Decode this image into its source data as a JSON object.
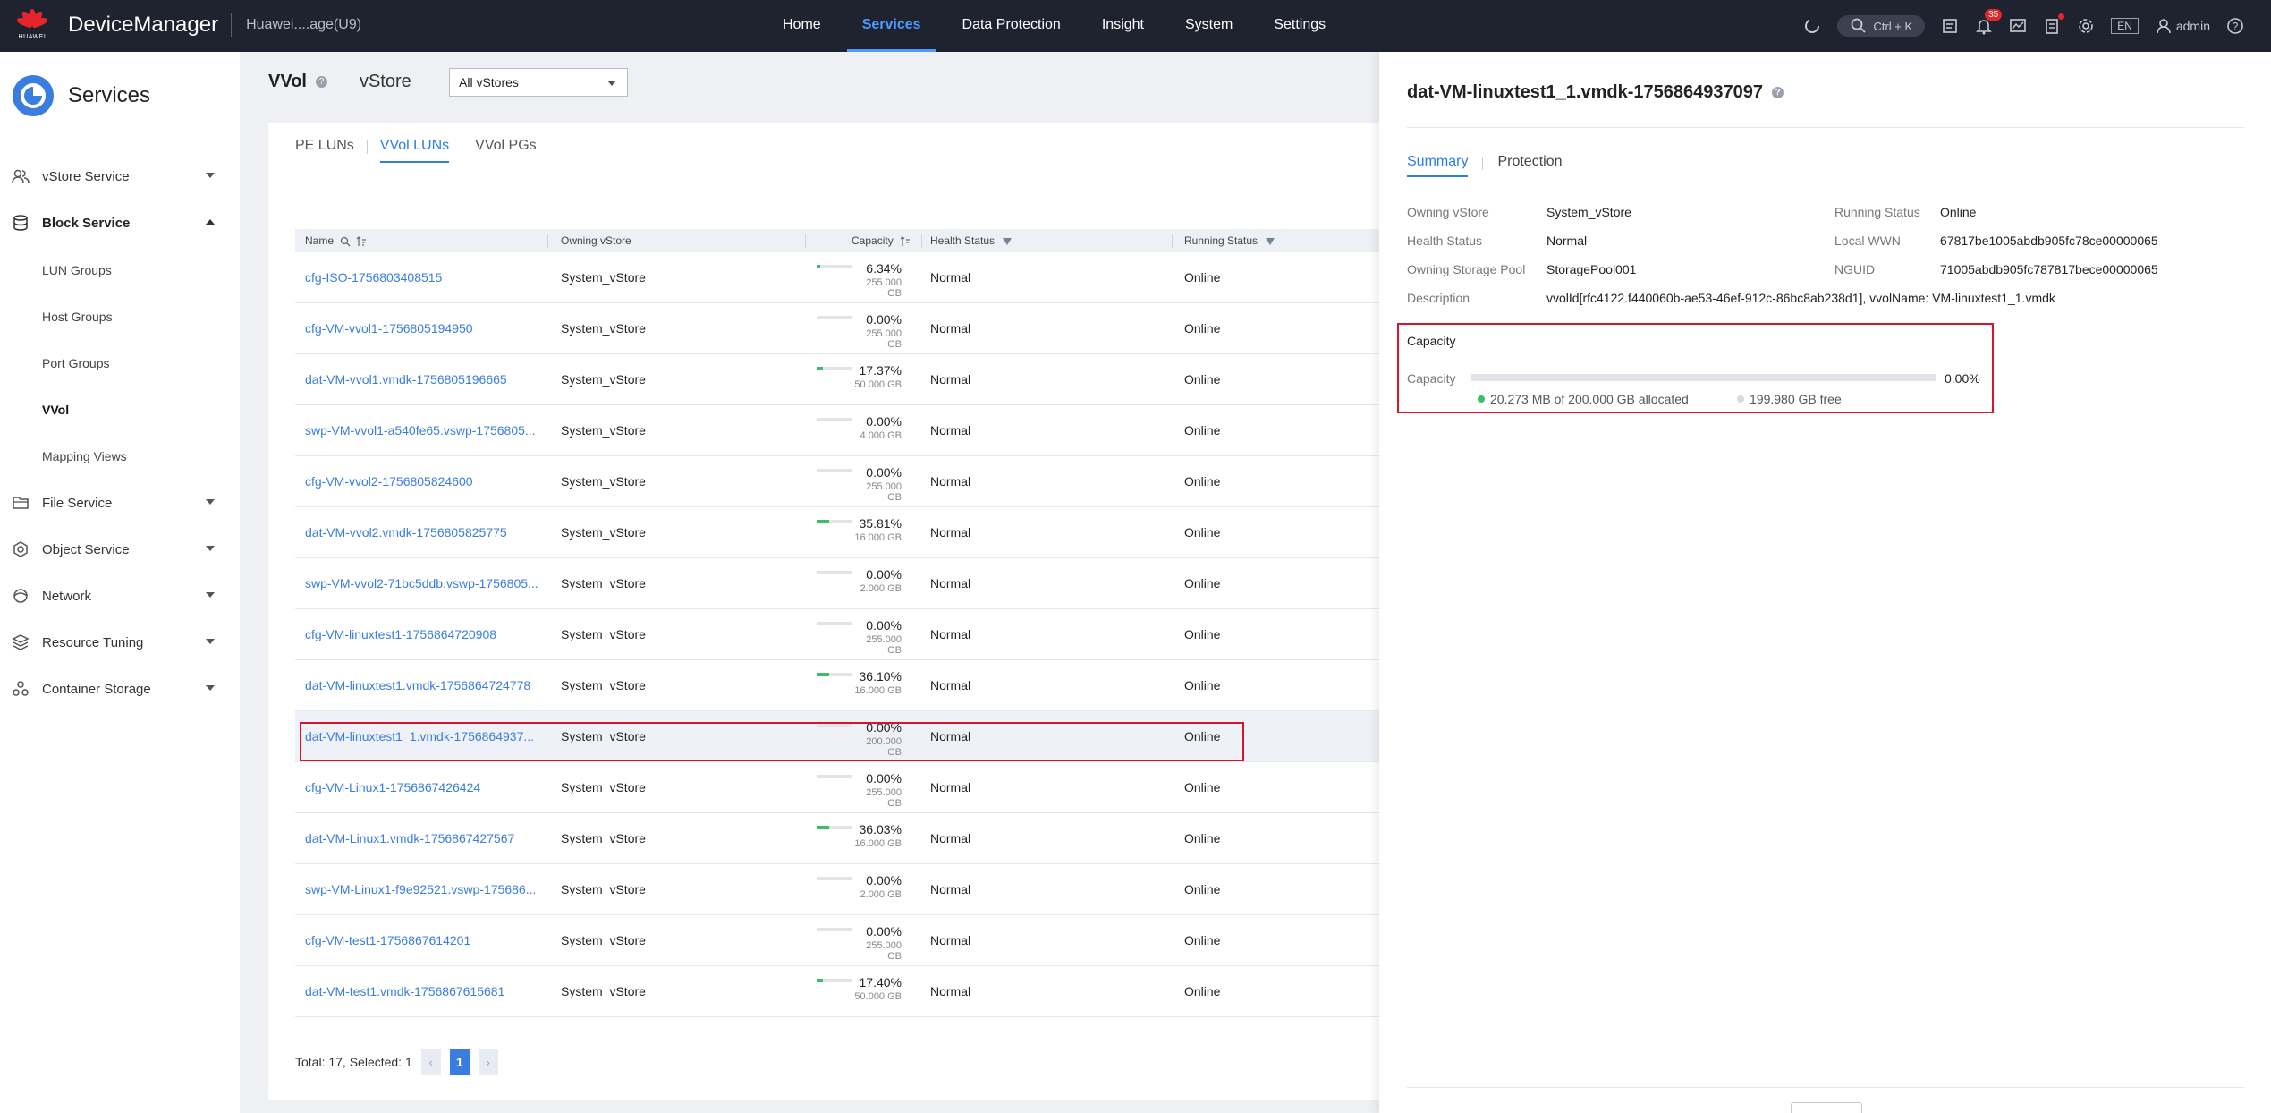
{
  "topnav": {
    "brand_logo_text": "HUAWEI",
    "app_title": "DeviceManager",
    "device_name": "Huawei....age(U9)",
    "tabs": [
      {
        "label": "Home"
      },
      {
        "label": "Services",
        "active": true
      },
      {
        "label": "Data Protection"
      },
      {
        "label": "Insight"
      },
      {
        "label": "System"
      },
      {
        "label": "Settings"
      }
    ],
    "search_shortcut": "Ctrl + K",
    "alarm_count": "35",
    "language": "EN",
    "user": "admin",
    "icons": [
      "loading-icon",
      "search-icon",
      "task-icon",
      "bell-icon",
      "monitor-icon",
      "clipboard-icon",
      "gear-icon",
      "user-icon",
      "help-icon"
    ]
  },
  "sidebar": {
    "title": "Services",
    "items": [
      {
        "label": "vStore Service",
        "icon": "users-icon",
        "expanded": false
      },
      {
        "label": "Block Service",
        "icon": "database-icon",
        "expanded": true,
        "children": [
          {
            "label": "LUN Groups"
          },
          {
            "label": "Host Groups"
          },
          {
            "label": "Port Groups"
          },
          {
            "label": "VVol",
            "active": true
          },
          {
            "label": "Mapping Views"
          }
        ]
      },
      {
        "label": "File Service",
        "icon": "folder-icon",
        "expanded": false
      },
      {
        "label": "Object Service",
        "icon": "hexagon-icon",
        "expanded": false
      },
      {
        "label": "Network",
        "icon": "network-icon",
        "expanded": false
      },
      {
        "label": "Resource Tuning",
        "icon": "layers-icon",
        "expanded": false
      },
      {
        "label": "Container Storage",
        "icon": "container-icon",
        "expanded": false
      }
    ]
  },
  "main": {
    "page_title": "VVol",
    "vstore_label": "vStore",
    "vstore_select": "All vStores",
    "subtabs": [
      {
        "label": "PE LUNs"
      },
      {
        "label": "VVol LUNs",
        "active": true
      },
      {
        "label": "VVol PGs"
      }
    ],
    "table": {
      "columns": {
        "name": "Name",
        "owning_vstore": "Owning vStore",
        "capacity": "Capacity",
        "health_status": "Health Status",
        "running_status": "Running Status"
      },
      "rows": [
        {
          "name": "cfg-ISO-1756803408515",
          "vstore": "System_vStore",
          "pct": "6.34%",
          "pct_value": 6.34,
          "total": "255.000 GB",
          "health": "Normal",
          "running": "Online"
        },
        {
          "name": "cfg-VM-vvol1-1756805194950",
          "vstore": "System_vStore",
          "pct": "0.00%",
          "pct_value": 0,
          "total": "255.000 GB",
          "health": "Normal",
          "running": "Online"
        },
        {
          "name": "dat-VM-vvol1.vmdk-1756805196665",
          "vstore": "System_vStore",
          "pct": "17.37%",
          "pct_value": 17.37,
          "total": "50.000 GB",
          "health": "Normal",
          "running": "Online"
        },
        {
          "name": "swp-VM-vvol1-a540fe65.vswp-1756805...",
          "vstore": "System_vStore",
          "pct": "0.00%",
          "pct_value": 0,
          "total": "4.000 GB",
          "health": "Normal",
          "running": "Online"
        },
        {
          "name": "cfg-VM-vvol2-1756805824600",
          "vstore": "System_vStore",
          "pct": "0.00%",
          "pct_value": 0,
          "total": "255.000 GB",
          "health": "Normal",
          "running": "Online"
        },
        {
          "name": "dat-VM-vvol2.vmdk-1756805825775",
          "vstore": "System_vStore",
          "pct": "35.81%",
          "pct_value": 35.81,
          "total": "16.000 GB",
          "health": "Normal",
          "running": "Online"
        },
        {
          "name": "swp-VM-vvol2-71bc5ddb.vswp-1756805...",
          "vstore": "System_vStore",
          "pct": "0.00%",
          "pct_value": 0,
          "total": "2.000 GB",
          "health": "Normal",
          "running": "Online"
        },
        {
          "name": "cfg-VM-linuxtest1-1756864720908",
          "vstore": "System_vStore",
          "pct": "0.00%",
          "pct_value": 0,
          "total": "255.000 GB",
          "health": "Normal",
          "running": "Online"
        },
        {
          "name": "dat-VM-linuxtest1.vmdk-1756864724778",
          "vstore": "System_vStore",
          "pct": "36.10%",
          "pct_value": 36.1,
          "total": "16.000 GB",
          "health": "Normal",
          "running": "Online"
        },
        {
          "name": "dat-VM-linuxtest1_1.vmdk-1756864937...",
          "vstore": "System_vStore",
          "pct": "0.00%",
          "pct_value": 0,
          "total": "200.000 GB",
          "health": "Normal",
          "running": "Online",
          "selected": true
        },
        {
          "name": "cfg-VM-Linux1-1756867426424",
          "vstore": "System_vStore",
          "pct": "0.00%",
          "pct_value": 0,
          "total": "255.000 GB",
          "health": "Normal",
          "running": "Online"
        },
        {
          "name": "dat-VM-Linux1.vmdk-1756867427567",
          "vstore": "System_vStore",
          "pct": "36.03%",
          "pct_value": 36.03,
          "total": "16.000 GB",
          "health": "Normal",
          "running": "Online"
        },
        {
          "name": "swp-VM-Linux1-f9e92521.vswp-175686...",
          "vstore": "System_vStore",
          "pct": "0.00%",
          "pct_value": 0,
          "total": "2.000 GB",
          "health": "Normal",
          "running": "Online"
        },
        {
          "name": "cfg-VM-test1-1756867614201",
          "vstore": "System_vStore",
          "pct": "0.00%",
          "pct_value": 0,
          "total": "255.000 GB",
          "health": "Normal",
          "running": "Online"
        },
        {
          "name": "dat-VM-test1.vmdk-1756867615681",
          "vstore": "System_vStore",
          "pct": "17.40%",
          "pct_value": 17.4,
          "total": "50.000 GB",
          "health": "Normal",
          "running": "Online"
        }
      ]
    },
    "pager": {
      "summary": "Total: 17, Selected: 1",
      "prev": "‹",
      "current": "1",
      "next": "›"
    }
  },
  "drawer": {
    "title": "dat-VM-linuxtest1_1.vmdk-1756864937097",
    "tabs": [
      {
        "label": "Summary",
        "active": true
      },
      {
        "label": "Protection"
      }
    ],
    "fields": {
      "owning_vstore": {
        "label": "Owning vStore",
        "value": "System_vStore"
      },
      "health_status": {
        "label": "Health Status",
        "value": "Normal"
      },
      "owning_pool": {
        "label": "Owning Storage Pool",
        "value": "StoragePool001"
      },
      "description": {
        "label": "Description",
        "value": "vvolId[rfc4122.f440060b-ae53-46ef-912c-86bc8ab238d1], vvolName: VM-linuxtest1_1.vmdk"
      },
      "running_status": {
        "label": "Running Status",
        "value": "Online"
      },
      "local_wwn": {
        "label": "Local WWN",
        "value": "67817be1005abdb905fc78ce00000065"
      },
      "nguid": {
        "label": "NGUID",
        "value": "71005abdb905fc787817bece00000065"
      }
    },
    "capacity": {
      "section_title": "Capacity",
      "label": "Capacity",
      "pct": "0.00%",
      "pct_value": 0,
      "allocated": "20.273 MB of 200.000 GB allocated",
      "free": "199.980 GB free"
    }
  },
  "colors": {
    "nav_bg": "#1f2330",
    "accent": "#2e7de6",
    "highlight_border": "#d9142a",
    "used_green": "#3dbd6a"
  }
}
